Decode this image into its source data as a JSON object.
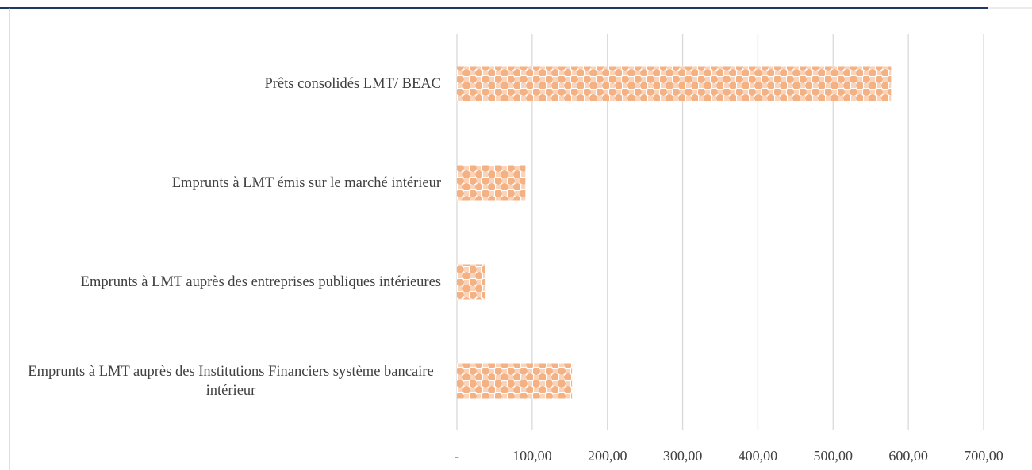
{
  "chart_data": {
    "type": "barh",
    "categories": [
      "Prêts consolidés LMT/ BEAC",
      "Emprunts à LMT émis sur le marché intérieur",
      "Emprunts à LMT auprès des entreprises publiques intérieures",
      "Emprunts à LMT auprès des Institutions Financiers système bancaire intérieur"
    ],
    "values": [
      577,
      91,
      38,
      153
    ],
    "color": "#f4b183",
    "xlim": [
      0,
      700
    ],
    "xticks": [
      {
        "value": 0,
        "label": "-"
      },
      {
        "value": 100,
        "label": "100,00"
      },
      {
        "value": 200,
        "label": "200,00"
      },
      {
        "value": 300,
        "label": "300,00"
      },
      {
        "value": 400,
        "label": "400,00"
      },
      {
        "value": 500,
        "label": "500,00"
      },
      {
        "value": 600,
        "label": "600,00"
      },
      {
        "value": 700,
        "label": "700,00"
      }
    ],
    "grid": true
  }
}
